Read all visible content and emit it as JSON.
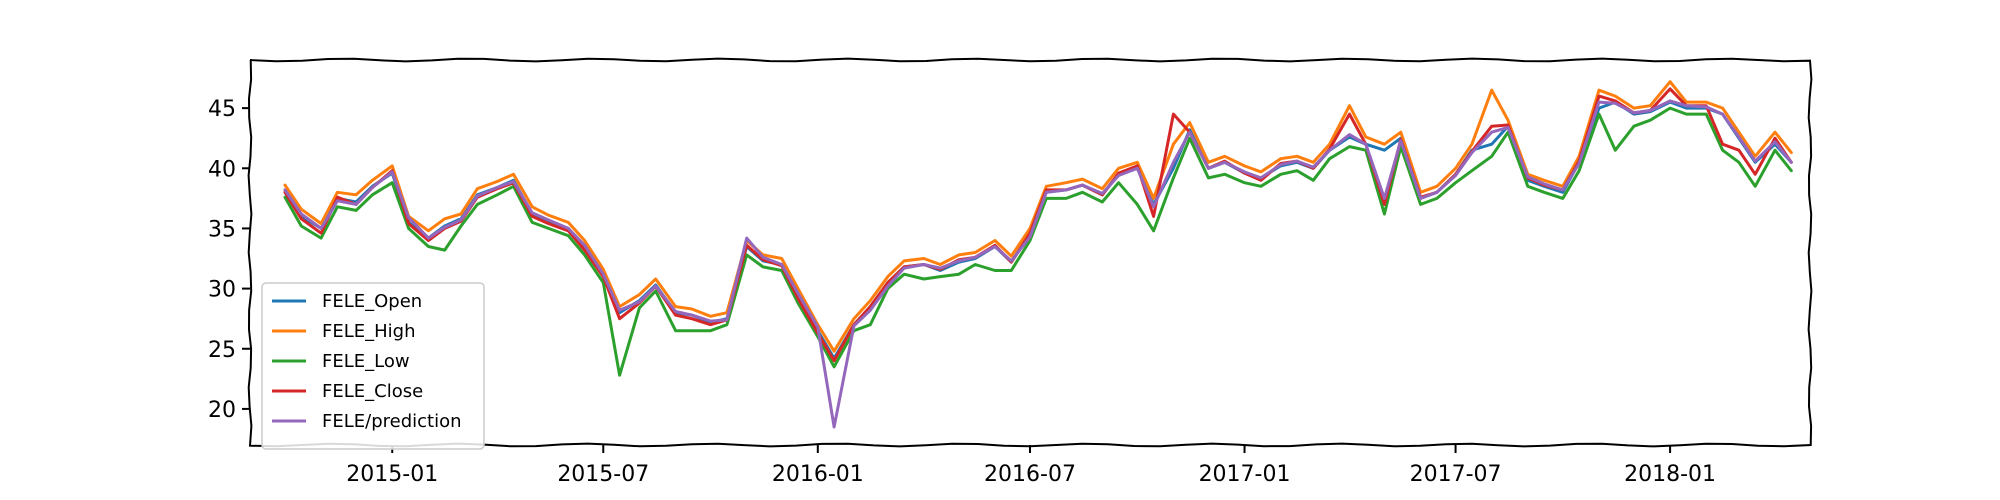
{
  "chart_data": {
    "type": "line",
    "title": "",
    "xlabel": "",
    "ylabel": "",
    "x_range": [
      "2014-09-01",
      "2018-05-01"
    ],
    "ylim": [
      17,
      49
    ],
    "grid": false,
    "legend_position": "lower-left",
    "x_ticks": [
      {
        "date": "2015-01-01",
        "label": "2015-01"
      },
      {
        "date": "2015-07-01",
        "label": "2015-07"
      },
      {
        "date": "2016-01-01",
        "label": "2016-01"
      },
      {
        "date": "2016-07-01",
        "label": "2016-07"
      },
      {
        "date": "2017-01-01",
        "label": "2017-01"
      },
      {
        "date": "2017-07-01",
        "label": "2017-07"
      },
      {
        "date": "2018-01-01",
        "label": "2018-01"
      }
    ],
    "y_ticks": [
      {
        "value": 20,
        "label": "20"
      },
      {
        "value": 25,
        "label": "25"
      },
      {
        "value": 30,
        "label": "30"
      },
      {
        "value": 35,
        "label": "35"
      },
      {
        "value": 40,
        "label": "40"
      },
      {
        "value": 45,
        "label": "45"
      }
    ],
    "x": [
      "2014-10-01",
      "2014-10-15",
      "2014-11-01",
      "2014-11-15",
      "2014-12-01",
      "2014-12-15",
      "2015-01-01",
      "2015-01-15",
      "2015-02-01",
      "2015-02-15",
      "2015-03-01",
      "2015-03-15",
      "2015-04-01",
      "2015-04-15",
      "2015-05-01",
      "2015-05-15",
      "2015-06-01",
      "2015-06-15",
      "2015-07-01",
      "2015-07-15",
      "2015-08-01",
      "2015-08-15",
      "2015-09-01",
      "2015-09-15",
      "2015-10-01",
      "2015-10-15",
      "2015-11-01",
      "2015-11-15",
      "2015-12-01",
      "2015-12-15",
      "2016-01-01",
      "2016-01-15",
      "2016-02-01",
      "2016-02-15",
      "2016-03-01",
      "2016-03-15",
      "2016-04-01",
      "2016-04-15",
      "2016-05-01",
      "2016-05-15",
      "2016-06-01",
      "2016-06-15",
      "2016-07-01",
      "2016-07-15",
      "2016-08-01",
      "2016-08-15",
      "2016-09-01",
      "2016-09-15",
      "2016-10-01",
      "2016-10-15",
      "2016-11-01",
      "2016-11-15",
      "2016-12-01",
      "2016-12-15",
      "2017-01-01",
      "2017-01-15",
      "2017-02-01",
      "2017-02-15",
      "2017-03-01",
      "2017-03-15",
      "2017-04-01",
      "2017-04-15",
      "2017-05-01",
      "2017-05-15",
      "2017-06-01",
      "2017-06-15",
      "2017-07-01",
      "2017-07-15",
      "2017-08-01",
      "2017-08-15",
      "2017-09-01",
      "2017-09-15",
      "2017-10-01",
      "2017-10-15",
      "2017-11-01",
      "2017-11-15",
      "2017-12-01",
      "2017-12-15",
      "2018-01-01",
      "2018-01-15",
      "2018-02-01",
      "2018-02-15",
      "2018-03-01",
      "2018-03-15",
      "2018-04-01",
      "2018-04-15"
    ],
    "series": [
      {
        "name": "FELE_Open",
        "color": "#1f77b4",
        "values": [
          38.2,
          36.0,
          35.0,
          37.5,
          37.2,
          38.5,
          39.6,
          35.5,
          34.2,
          35.2,
          35.8,
          37.8,
          38.4,
          39.0,
          36.2,
          35.6,
          35.0,
          33.5,
          31.0,
          28.0,
          29.0,
          30.3,
          28.0,
          27.8,
          27.2,
          27.5,
          33.5,
          32.3,
          32.0,
          29.5,
          26.5,
          24.2,
          27.0,
          28.5,
          30.5,
          31.8,
          32.0,
          31.5,
          32.2,
          32.5,
          33.5,
          32.2,
          34.5,
          38.0,
          38.2,
          38.6,
          37.8,
          39.5,
          40.0,
          37.0,
          40.0,
          43.2,
          40.0,
          40.5,
          39.6,
          39.2,
          40.2,
          40.5,
          40.0,
          41.5,
          42.6,
          42.0,
          41.5,
          42.5,
          37.5,
          38.0,
          39.5,
          41.5,
          42.0,
          43.5,
          39.0,
          38.5,
          38.0,
          40.5,
          45.0,
          45.5,
          44.5,
          44.7,
          45.5,
          45.0,
          45.0,
          44.5,
          42.5,
          40.5,
          42.0,
          40.5
        ]
      },
      {
        "name": "FELE_High",
        "color": "#ff7f0e",
        "values": [
          38.6,
          36.6,
          35.4,
          38.0,
          37.8,
          39.0,
          40.2,
          36.0,
          34.8,
          35.8,
          36.2,
          38.3,
          38.9,
          39.5,
          36.8,
          36.1,
          35.5,
          34.0,
          31.6,
          28.5,
          29.5,
          30.8,
          28.5,
          28.3,
          27.7,
          28.0,
          34.0,
          32.8,
          32.5,
          30.0,
          27.0,
          24.8,
          27.5,
          29.0,
          31.0,
          32.3,
          32.5,
          32.0,
          32.8,
          33.0,
          34.0,
          32.7,
          35.0,
          38.5,
          38.8,
          39.1,
          38.3,
          40.0,
          40.5,
          37.5,
          42.0,
          43.8,
          40.5,
          41.0,
          40.2,
          39.7,
          40.8,
          41.0,
          40.5,
          42.0,
          45.2,
          42.6,
          42.0,
          43.0,
          38.0,
          38.5,
          40.0,
          42.0,
          46.5,
          44.0,
          39.5,
          39.0,
          38.5,
          41.0,
          46.5,
          46.0,
          45.0,
          45.2,
          47.2,
          45.5,
          45.5,
          45.0,
          43.0,
          41.0,
          43.0,
          41.3
        ]
      },
      {
        "name": "FELE_Low",
        "color": "#2ca02c",
        "values": [
          37.6,
          35.2,
          34.2,
          36.8,
          36.5,
          37.8,
          38.8,
          35.0,
          33.5,
          33.2,
          35.2,
          37.0,
          37.8,
          38.5,
          35.5,
          35.0,
          34.4,
          32.8,
          30.5,
          22.8,
          28.4,
          29.8,
          26.5,
          26.5,
          26.5,
          27.0,
          32.8,
          31.8,
          31.5,
          28.8,
          26.0,
          23.5,
          26.5,
          27.0,
          30.0,
          31.2,
          30.8,
          31.0,
          31.2,
          32.0,
          31.5,
          31.5,
          34.0,
          37.5,
          37.5,
          38.0,
          37.2,
          38.8,
          37.0,
          34.8,
          39.2,
          42.5,
          39.2,
          39.5,
          38.8,
          38.5,
          39.5,
          39.8,
          39.0,
          40.8,
          41.8,
          41.5,
          36.2,
          41.8,
          37.0,
          37.5,
          38.8,
          39.8,
          41.0,
          43.0,
          38.5,
          38.0,
          37.5,
          39.8,
          44.5,
          41.5,
          43.5,
          44.0,
          45.0,
          44.5,
          44.5,
          41.5,
          40.5,
          38.5,
          41.5,
          39.8
        ]
      },
      {
        "name": "FELE_Close",
        "color": "#d62728",
        "values": [
          38.0,
          35.8,
          34.6,
          37.6,
          37.0,
          38.4,
          39.8,
          35.4,
          34.0,
          35.0,
          35.6,
          37.6,
          38.3,
          38.8,
          36.0,
          35.4,
          34.8,
          33.2,
          31.0,
          27.5,
          28.8,
          30.2,
          27.8,
          27.5,
          27.0,
          27.4,
          33.6,
          32.4,
          31.9,
          29.2,
          26.3,
          24.0,
          27.0,
          28.5,
          30.5,
          31.8,
          32.0,
          31.6,
          32.4,
          32.6,
          33.6,
          32.2,
          34.6,
          38.2,
          38.2,
          38.6,
          37.8,
          39.6,
          40.2,
          36.0,
          44.5,
          43.0,
          40.0,
          40.6,
          39.6,
          39.0,
          40.4,
          40.6,
          40.0,
          41.6,
          44.5,
          42.0,
          37.0,
          42.4,
          37.6,
          38.0,
          39.5,
          41.4,
          43.5,
          43.6,
          39.2,
          38.6,
          38.2,
          40.6,
          46.0,
          45.6,
          44.6,
          44.8,
          46.6,
          45.2,
          45.2,
          42.0,
          41.5,
          39.5,
          42.5,
          40.5
        ]
      },
      {
        "name": "FELE/prediction",
        "color": "#9467bd",
        "values": [
          38.2,
          36.2,
          35.0,
          37.3,
          37.0,
          38.4,
          39.7,
          35.9,
          34.2,
          35.1,
          35.7,
          37.7,
          38.4,
          38.9,
          36.3,
          35.7,
          35.0,
          33.6,
          31.2,
          28.2,
          28.9,
          30.2,
          28.1,
          27.8,
          27.3,
          27.4,
          34.2,
          32.6,
          32.0,
          29.6,
          26.8,
          18.5,
          26.9,
          28.2,
          30.2,
          31.7,
          32.0,
          31.7,
          32.3,
          32.6,
          33.5,
          32.3,
          34.3,
          38.0,
          38.2,
          38.6,
          37.9,
          39.4,
          40.0,
          36.8,
          40.5,
          43.0,
          40.0,
          40.5,
          39.7,
          39.2,
          40.3,
          40.6,
          40.1,
          41.5,
          42.8,
          42.0,
          37.5,
          42.3,
          37.5,
          38.0,
          39.4,
          41.3,
          43.0,
          43.4,
          39.3,
          38.7,
          38.2,
          40.4,
          45.5,
          45.4,
          44.6,
          44.8,
          45.6,
          45.2,
          45.1,
          44.5,
          42.6,
          40.6,
          42.2,
          40.5
        ]
      }
    ]
  }
}
